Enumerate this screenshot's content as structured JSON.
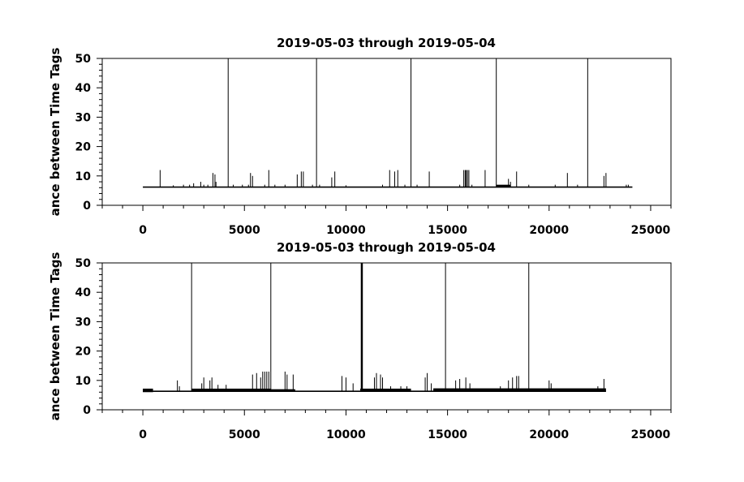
{
  "chart_data": [
    {
      "type": "line",
      "title": "2019-05-03 through 2019-05-04",
      "xlabel": "",
      "ylabel": "ance between Time Tags",
      "xlim": [
        -2000,
        26000
      ],
      "ylim": [
        0,
        50
      ],
      "x_ticks": [
        0,
        5000,
        10000,
        15000,
        20000,
        25000
      ],
      "y_ticks": [
        0,
        10,
        20,
        30,
        40,
        50
      ],
      "grid": false,
      "baseline": {
        "x_start": 0,
        "x_end": 24100,
        "y": 6.2
      },
      "band_segments": [
        {
          "x_start": 17400,
          "x_end": 18100,
          "low": 6.2,
          "high": 7.0
        }
      ],
      "spikes": [
        {
          "x": 850,
          "y": 12
        },
        {
          "x": 1500,
          "y": 6.8
        },
        {
          "x": 2000,
          "y": 7
        },
        {
          "x": 2300,
          "y": 7
        },
        {
          "x": 2500,
          "y": 7.5
        },
        {
          "x": 2850,
          "y": 8
        },
        {
          "x": 3000,
          "y": 7
        },
        {
          "x": 3200,
          "y": 7
        },
        {
          "x": 3450,
          "y": 11
        },
        {
          "x": 3550,
          "y": 10.5
        },
        {
          "x": 3600,
          "y": 8
        },
        {
          "x": 4200,
          "y": 50
        },
        {
          "x": 4450,
          "y": 7
        },
        {
          "x": 4900,
          "y": 7
        },
        {
          "x": 5200,
          "y": 7
        },
        {
          "x": 5300,
          "y": 11
        },
        {
          "x": 5400,
          "y": 10
        },
        {
          "x": 6000,
          "y": 7
        },
        {
          "x": 6200,
          "y": 12
        },
        {
          "x": 6500,
          "y": 7
        },
        {
          "x": 7000,
          "y": 7
        },
        {
          "x": 7600,
          "y": 10.5
        },
        {
          "x": 7800,
          "y": 11.5
        },
        {
          "x": 7900,
          "y": 11.5
        },
        {
          "x": 8350,
          "y": 7
        },
        {
          "x": 8550,
          "y": 50
        },
        {
          "x": 8700,
          "y": 7
        },
        {
          "x": 9300,
          "y": 9.5
        },
        {
          "x": 9450,
          "y": 11.5
        },
        {
          "x": 10000,
          "y": 6.8
        },
        {
          "x": 11800,
          "y": 7
        },
        {
          "x": 12150,
          "y": 12
        },
        {
          "x": 12400,
          "y": 11.5
        },
        {
          "x": 12550,
          "y": 12
        },
        {
          "x": 12900,
          "y": 7
        },
        {
          "x": 13200,
          "y": 50
        },
        {
          "x": 13500,
          "y": 7
        },
        {
          "x": 14100,
          "y": 11.5
        },
        {
          "x": 15600,
          "y": 7
        },
        {
          "x": 15800,
          "y": 12
        },
        {
          "x": 15870,
          "y": 12
        },
        {
          "x": 15920,
          "y": 12
        },
        {
          "x": 15980,
          "y": 12
        },
        {
          "x": 16050,
          "y": 12
        },
        {
          "x": 16200,
          "y": 7
        },
        {
          "x": 16850,
          "y": 12
        },
        {
          "x": 17400,
          "y": 50
        },
        {
          "x": 18000,
          "y": 9
        },
        {
          "x": 18100,
          "y": 8
        },
        {
          "x": 18400,
          "y": 11.5
        },
        {
          "x": 19000,
          "y": 7
        },
        {
          "x": 20300,
          "y": 7
        },
        {
          "x": 20900,
          "y": 11
        },
        {
          "x": 21400,
          "y": 7
        },
        {
          "x": 21900,
          "y": 50
        },
        {
          "x": 22700,
          "y": 10
        },
        {
          "x": 22800,
          "y": 11
        },
        {
          "x": 23800,
          "y": 7
        },
        {
          "x": 23900,
          "y": 7
        }
      ]
    },
    {
      "type": "line",
      "title": "2019-05-03 through 2019-05-04",
      "xlabel": "",
      "ylabel": "ance between Time Tags",
      "xlim": [
        -2000,
        26000
      ],
      "ylim": [
        0,
        50
      ],
      "x_ticks": [
        0,
        5000,
        10000,
        15000,
        20000,
        25000
      ],
      "y_ticks": [
        0,
        10,
        20,
        30,
        40,
        50
      ],
      "grid": false,
      "baseline": {
        "x_start": 0,
        "x_end": 22800,
        "y": 6.3
      },
      "band_segments": [
        {
          "x_start": 0,
          "x_end": 500,
          "low": 6.0,
          "high": 7.2
        },
        {
          "x_start": 2400,
          "x_end": 6300,
          "low": 6.2,
          "high": 7.2
        },
        {
          "x_start": 6300,
          "x_end": 7500,
          "low": 6.3,
          "high": 7.0
        },
        {
          "x_start": 10700,
          "x_end": 13200,
          "low": 6.3,
          "high": 7.2
        },
        {
          "x_start": 14300,
          "x_end": 22800,
          "low": 6.2,
          "high": 7.3
        }
      ],
      "spikes": [
        {
          "x": 1700,
          "y": 10
        },
        {
          "x": 1800,
          "y": 8
        },
        {
          "x": 2400,
          "y": 50
        },
        {
          "x": 2900,
          "y": 9
        },
        {
          "x": 3000,
          "y": 11
        },
        {
          "x": 3300,
          "y": 10
        },
        {
          "x": 3400,
          "y": 11
        },
        {
          "x": 3700,
          "y": 8.5
        },
        {
          "x": 4100,
          "y": 8.5
        },
        {
          "x": 5400,
          "y": 12
        },
        {
          "x": 5600,
          "y": 12.5
        },
        {
          "x": 5800,
          "y": 11
        },
        {
          "x": 5900,
          "y": 13
        },
        {
          "x": 6000,
          "y": 13
        },
        {
          "x": 6100,
          "y": 13
        },
        {
          "x": 6200,
          "y": 13
        },
        {
          "x": 6300,
          "y": 50
        },
        {
          "x": 7000,
          "y": 13
        },
        {
          "x": 7100,
          "y": 12
        },
        {
          "x": 7400,
          "y": 12
        },
        {
          "x": 9800,
          "y": 11.5
        },
        {
          "x": 10000,
          "y": 11
        },
        {
          "x": 10350,
          "y": 9
        },
        {
          "x": 10750,
          "y": 50
        },
        {
          "x": 10780,
          "y": 50
        },
        {
          "x": 10810,
          "y": 50
        },
        {
          "x": 11400,
          "y": 11
        },
        {
          "x": 11500,
          "y": 12.5
        },
        {
          "x": 11700,
          "y": 12
        },
        {
          "x": 11800,
          "y": 11
        },
        {
          "x": 12200,
          "y": 8
        },
        {
          "x": 12700,
          "y": 8
        },
        {
          "x": 13000,
          "y": 8
        },
        {
          "x": 13900,
          "y": 11
        },
        {
          "x": 14000,
          "y": 12.5
        },
        {
          "x": 14200,
          "y": 9
        },
        {
          "x": 14900,
          "y": 50
        },
        {
          "x": 15400,
          "y": 10
        },
        {
          "x": 15600,
          "y": 10.5
        },
        {
          "x": 15900,
          "y": 11
        },
        {
          "x": 16100,
          "y": 9
        },
        {
          "x": 17600,
          "y": 8
        },
        {
          "x": 18000,
          "y": 10
        },
        {
          "x": 18200,
          "y": 11
        },
        {
          "x": 18400,
          "y": 11.5
        },
        {
          "x": 18500,
          "y": 11.5
        },
        {
          "x": 19000,
          "y": 50
        },
        {
          "x": 20000,
          "y": 10
        },
        {
          "x": 20100,
          "y": 9
        },
        {
          "x": 22400,
          "y": 8
        },
        {
          "x": 22700,
          "y": 10.5
        }
      ]
    }
  ]
}
